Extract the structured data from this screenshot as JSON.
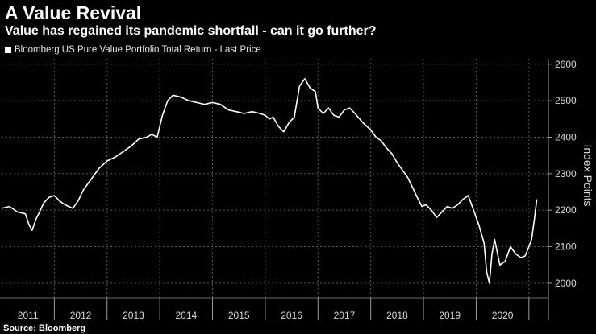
{
  "header": {
    "title": "A Value Revival",
    "subtitle": "Value has regained its pandemic shortfall - can it go further?",
    "source": "Source: Bloomberg"
  },
  "chart_data": {
    "type": "line",
    "ylabel": "Index Points",
    "ylim": [
      1960,
      2615
    ],
    "yticks": [
      2000,
      2100,
      2200,
      2300,
      2400,
      2500,
      2600
    ],
    "ytick_labels": [
      "2000",
      "2100",
      "2200",
      "2300",
      "2400",
      "2500",
      "2600"
    ],
    "x_categories": [
      "2011",
      "2012",
      "2013",
      "2014",
      "2015",
      "2016",
      "2017",
      "2018",
      "2019",
      "2020"
    ],
    "grid": true,
    "legend_position": "top-left",
    "colors": {
      "background": "#000000",
      "line": "#ffffff",
      "grid": "#5a5a5a",
      "text": "#d8d8d8"
    },
    "series": [
      {
        "name": "Bloomberg US Pure Value Portfolio Total Return - Last Price",
        "x": [
          2011.0,
          2011.15,
          2011.3,
          2011.45,
          2011.52,
          2011.58,
          2011.65,
          2011.72,
          2011.8,
          2011.9,
          2012.0,
          2012.1,
          2012.2,
          2012.35,
          2012.45,
          2012.55,
          2012.7,
          2012.85,
          2013.0,
          2013.15,
          2013.3,
          2013.45,
          2013.6,
          2013.75,
          2013.85,
          2013.95,
          2014.05,
          2014.15,
          2014.25,
          2014.4,
          2014.55,
          2014.7,
          2014.85,
          2015.0,
          2015.15,
          2015.3,
          2015.45,
          2015.6,
          2015.75,
          2015.9,
          2016.0,
          2016.08,
          2016.15,
          2016.25,
          2016.35,
          2016.45,
          2016.55,
          2016.65,
          2016.75,
          2016.85,
          2016.95,
          2017.0,
          2017.1,
          2017.2,
          2017.3,
          2017.4,
          2017.5,
          2017.6,
          2017.7,
          2017.85,
          2018.0,
          2018.1,
          2018.2,
          2018.3,
          2018.4,
          2018.5,
          2018.6,
          2018.7,
          2018.8,
          2018.9,
          2018.97,
          2019.05,
          2019.15,
          2019.25,
          2019.35,
          2019.45,
          2019.55,
          2019.65,
          2019.75,
          2019.85,
          2019.95,
          2020.05,
          2020.15,
          2020.2,
          2020.25,
          2020.3,
          2020.35,
          2020.45,
          2020.55,
          2020.65,
          2020.75,
          2020.85,
          2020.93,
          2021.0,
          2021.05,
          2021.1,
          2021.15
        ],
        "values": [
          2205,
          2210,
          2195,
          2190,
          2160,
          2145,
          2175,
          2195,
          2220,
          2235,
          2240,
          2225,
          2215,
          2205,
          2225,
          2255,
          2285,
          2315,
          2335,
          2345,
          2360,
          2375,
          2395,
          2400,
          2408,
          2400,
          2460,
          2500,
          2515,
          2510,
          2500,
          2495,
          2490,
          2495,
          2490,
          2475,
          2470,
          2465,
          2470,
          2465,
          2460,
          2450,
          2455,
          2430,
          2415,
          2440,
          2455,
          2540,
          2560,
          2535,
          2525,
          2480,
          2465,
          2480,
          2460,
          2455,
          2475,
          2480,
          2465,
          2440,
          2420,
          2400,
          2390,
          2370,
          2355,
          2330,
          2310,
          2290,
          2260,
          2230,
          2210,
          2215,
          2200,
          2180,
          2195,
          2210,
          2205,
          2215,
          2230,
          2240,
          2200,
          2160,
          2110,
          2030,
          2000,
          2080,
          2120,
          2050,
          2060,
          2100,
          2080,
          2070,
          2075,
          2100,
          2120,
          2170,
          2230
        ]
      }
    ]
  }
}
